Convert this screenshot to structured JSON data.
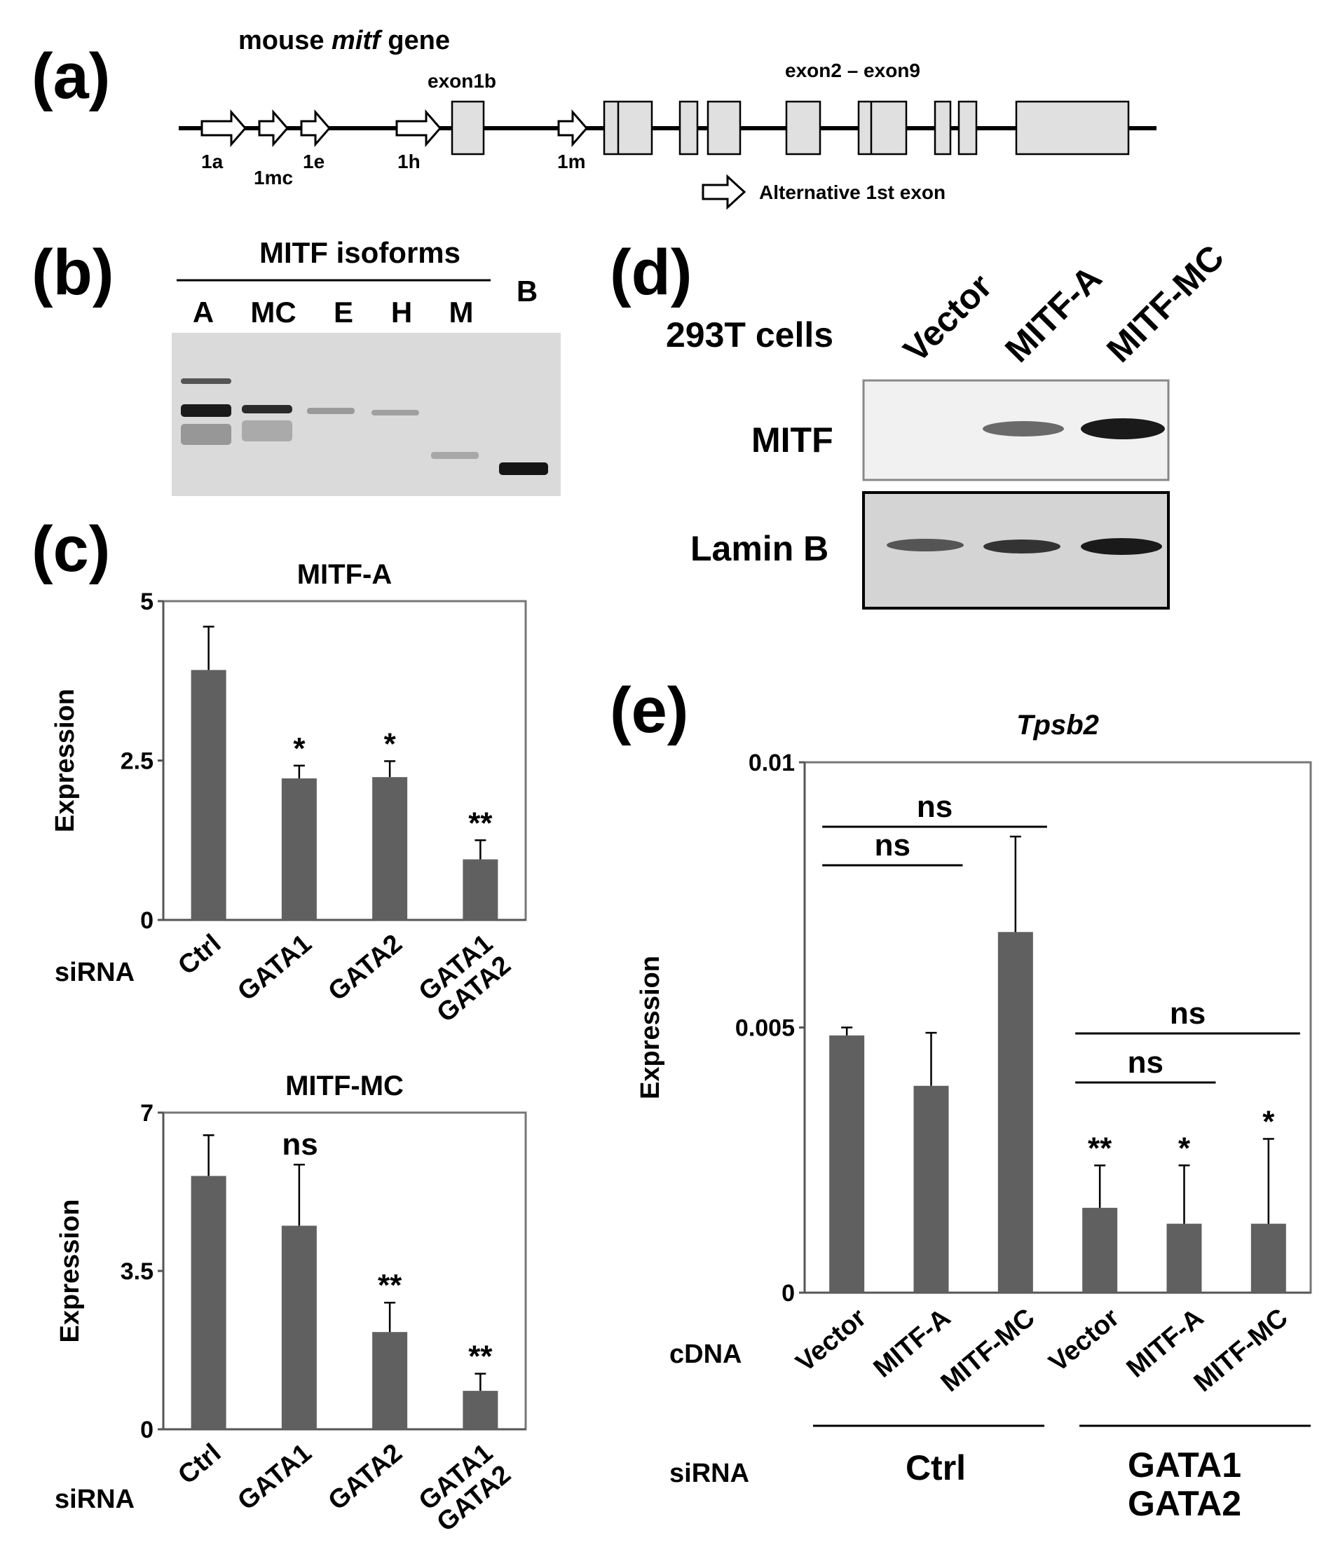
{
  "panels": {
    "a": {
      "label": "(a)",
      "title_prefix": "mouse ",
      "title_italic": "mitf",
      "title_suffix": " gene",
      "exon1b_label": "exon1b",
      "exon_range_label": "exon2 – exon9",
      "alt_first_exons": [
        "1a",
        "1mc",
        "1e",
        "1h",
        "1m"
      ],
      "legend_text": "Alternative 1st exon"
    },
    "b": {
      "label": "(b)",
      "title": "MITF isoforms",
      "lanes": [
        "A",
        "MC",
        "E",
        "H",
        "M",
        "B"
      ]
    },
    "c": {
      "label": "(c)",
      "siRNA_label": "siRNA"
    },
    "d": {
      "label": "(d)",
      "cells_label": "293T cells",
      "lanes": [
        "Vector",
        "MITF-A",
        "MITF-MC"
      ],
      "rows": [
        "MITF",
        "Lamin B"
      ]
    },
    "e": {
      "label": "(e)",
      "cdna_label": "cDNA",
      "sirna_label": "siRNA",
      "sirna_groups": [
        "Ctrl",
        "GATA1\nGATA2"
      ]
    }
  },
  "chart_data": [
    {
      "type": "bar",
      "panel": "c-top",
      "title": "MITF-A",
      "ylabel": "Expression",
      "categories": [
        "Ctrl",
        "GATA1",
        "GATA2",
        "GATA1\nGATA2"
      ],
      "values": [
        3.92,
        2.22,
        2.24,
        0.95
      ],
      "errors": [
        0.68,
        0.2,
        0.25,
        0.3
      ],
      "significance": [
        "",
        "*",
        "*",
        "**"
      ],
      "ylim": [
        0,
        5
      ],
      "yticks": [
        "0",
        "2.5",
        "5"
      ],
      "color": "#606060"
    },
    {
      "type": "bar",
      "panel": "c-bottom",
      "title": "MITF-MC",
      "ylabel": "Expression",
      "categories": [
        "Ctrl",
        "GATA1",
        "GATA2",
        "GATA1\nGATA2"
      ],
      "values": [
        5.6,
        4.5,
        2.15,
        0.85
      ],
      "errors": [
        0.9,
        1.35,
        0.65,
        0.38
      ],
      "significance": [
        "",
        "",
        "**",
        "**"
      ],
      "annotation": "ns",
      "ylim": [
        0,
        7
      ],
      "yticks": [
        "0",
        "3.5",
        "7"
      ],
      "color": "#606060"
    },
    {
      "type": "bar",
      "panel": "e",
      "title": "Tpsb2",
      "ylabel": "Expression",
      "categories": [
        "Vector",
        "MITF-A",
        "MITF-MC",
        "Vector",
        "MITF-A",
        "MITF-MC"
      ],
      "values": [
        0.00485,
        0.0039,
        0.0068,
        0.0016,
        0.0013,
        0.0013
      ],
      "errors": [
        0.00015,
        0.001,
        0.0018,
        0.0008,
        0.0011,
        0.0016
      ],
      "significance": [
        "",
        "",
        "",
        "**",
        "*",
        "*"
      ],
      "comparisons": [
        {
          "from": 0,
          "to": 1,
          "label": "ns"
        },
        {
          "from": 0,
          "to": 2,
          "label": "ns"
        },
        {
          "from": 3,
          "to": 4,
          "label": "ns"
        },
        {
          "from": 3,
          "to": 5,
          "label": "ns"
        }
      ],
      "ylim": [
        0,
        0.01
      ],
      "yticks": [
        "0",
        "0.005",
        "0.01"
      ],
      "color": "#606060"
    }
  ]
}
